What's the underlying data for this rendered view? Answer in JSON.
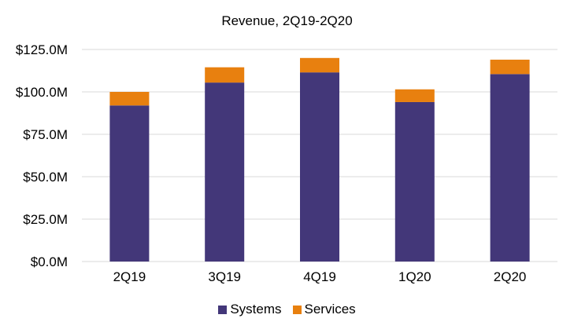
{
  "chart_data": {
    "type": "bar",
    "stacked": true,
    "title": "Revenue, 2Q19-2Q20",
    "xlabel": "",
    "ylabel": "",
    "categories": [
      "2Q19",
      "3Q19",
      "4Q19",
      "1Q20",
      "2Q20"
    ],
    "series": [
      {
        "name": "Systems",
        "color": "#433779",
        "values": [
          92,
          105.5,
          111.5,
          94,
          110.5
        ]
      },
      {
        "name": "Services",
        "color": "#E8800F",
        "values": [
          8,
          9,
          8.5,
          7.5,
          8.5
        ]
      }
    ],
    "ylim": [
      0,
      125
    ],
    "yticks": [
      0,
      25,
      50,
      75,
      100,
      125
    ],
    "ytick_labels": [
      "$0.0M",
      "$25.0M",
      "$50.0M",
      "$75.0M",
      "$100.0M",
      "$125.0M"
    ],
    "grid": true,
    "legend": "bottom"
  }
}
